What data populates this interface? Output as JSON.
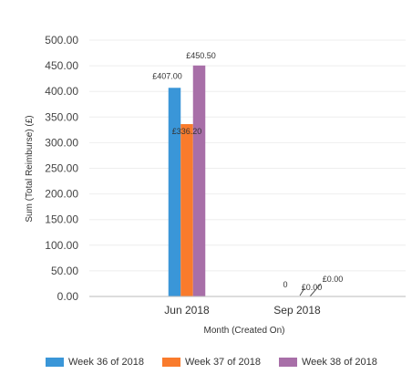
{
  "chart_data": {
    "type": "bar",
    "xlabel": "Month (Created On)",
    "ylabel": "Sum (Total Reimburse) (£)",
    "ylim": [
      0,
      500
    ],
    "yticks": [
      "0.00",
      "50.00",
      "100.00",
      "150.00",
      "200.00",
      "250.00",
      "300.00",
      "350.00",
      "400.00",
      "450.00",
      "500.00"
    ],
    "categories": [
      "Jun 2018",
      "Sep 2018"
    ],
    "series": [
      {
        "name": "Week 36 of 2018",
        "color": "#3a96d8",
        "values": [
          407.0,
          0
        ],
        "labels": [
          "£407.00",
          "0"
        ]
      },
      {
        "name": "Week 37 of 2018",
        "color": "#f97b2c",
        "values": [
          336.2,
          0
        ],
        "labels": [
          "£336.20",
          "£0.00"
        ]
      },
      {
        "name": "Week 38 of 2018",
        "color": "#a86fa8",
        "values": [
          450.5,
          0
        ],
        "labels": [
          "£450.50",
          "£0.00"
        ]
      }
    ],
    "grid": true,
    "legend_position": "bottom-left"
  }
}
